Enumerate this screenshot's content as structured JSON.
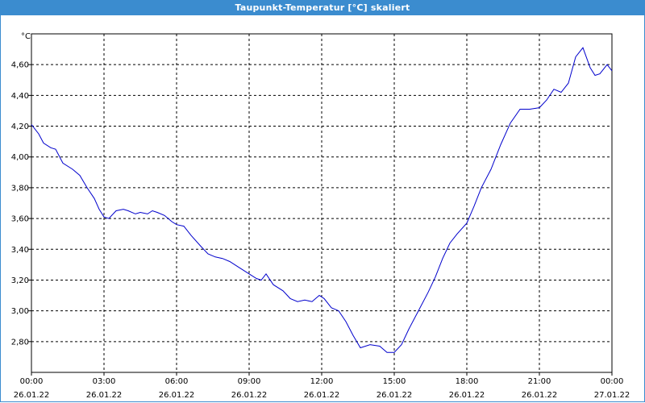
{
  "window": {
    "title": "Taupunkt-Temperatur [°C] skaliert"
  },
  "colors": {
    "title_bar": "#3b8ccf",
    "line": "#0000cc",
    "grid": "#000000"
  },
  "chart_data": {
    "type": "line",
    "title": "Taupunkt-Temperatur [°C] skaliert",
    "ylabel": "°C",
    "xlabel": "",
    "ylim": [
      2.6,
      4.8
    ],
    "xlim": [
      0,
      24
    ],
    "grid": true,
    "y_ticks": [
      {
        "value": 2.8,
        "label": "2,80"
      },
      {
        "value": 3.0,
        "label": "3,00"
      },
      {
        "value": 3.2,
        "label": "3,20"
      },
      {
        "value": 3.4,
        "label": "3,40"
      },
      {
        "value": 3.6,
        "label": "3,60"
      },
      {
        "value": 3.8,
        "label": "3,80"
      },
      {
        "value": 4.0,
        "label": "4,00"
      },
      {
        "value": 4.2,
        "label": "4,20"
      },
      {
        "value": 4.4,
        "label": "4,40"
      },
      {
        "value": 4.6,
        "label": "4,60"
      }
    ],
    "x_ticks": [
      {
        "value": 0,
        "time": "00:00",
        "date": "26.01.22"
      },
      {
        "value": 3,
        "time": "03:00",
        "date": "26.01.22"
      },
      {
        "value": 6,
        "time": "06:00",
        "date": "26.01.22"
      },
      {
        "value": 9,
        "time": "09:00",
        "date": "26.01.22"
      },
      {
        "value": 12,
        "time": "12:00",
        "date": "26.01.22"
      },
      {
        "value": 15,
        "time": "15:00",
        "date": "26.01.22"
      },
      {
        "value": 18,
        "time": "18:00",
        "date": "26.01.22"
      },
      {
        "value": 21,
        "time": "21:00",
        "date": "26.01.22"
      },
      {
        "value": 24,
        "time": "00:00",
        "date": "27.01.22"
      }
    ],
    "series": [
      {
        "x": [
          0,
          0.3,
          0.5,
          0.8,
          1.0,
          1.3,
          1.7,
          2.0,
          2.3,
          2.6,
          2.8,
          3.0,
          3.2,
          3.5,
          3.8,
          4.0,
          4.3,
          4.5,
          4.8,
          5.0,
          5.2,
          5.5,
          5.8,
          6.0,
          6.3,
          6.6,
          7.0,
          7.3,
          7.6,
          7.9,
          8.2,
          8.6,
          9.0,
          9.3,
          9.5,
          9.7,
          10.0,
          10.4,
          10.7,
          11.0,
          11.3,
          11.6,
          11.9,
          12.1,
          12.4,
          12.7,
          13.0,
          13.3,
          13.6,
          14.0,
          14.4,
          14.7,
          15.0,
          15.3,
          15.6,
          16.0,
          16.4,
          16.7,
          17.0,
          17.3,
          17.6,
          18.0,
          18.3,
          18.6,
          19.0,
          19.4,
          19.8,
          20.2,
          20.6,
          21.0,
          21.3,
          21.6,
          21.9,
          22.2,
          22.5,
          22.8,
          23.1,
          23.3,
          23.5,
          23.8,
          24.0
        ],
        "y": [
          4.21,
          4.15,
          4.09,
          4.06,
          4.05,
          3.96,
          3.92,
          3.88,
          3.8,
          3.73,
          3.66,
          3.61,
          3.6,
          3.65,
          3.66,
          3.65,
          3.63,
          3.64,
          3.63,
          3.65,
          3.64,
          3.62,
          3.58,
          3.56,
          3.55,
          3.49,
          3.42,
          3.37,
          3.35,
          3.34,
          3.32,
          3.28,
          3.24,
          3.21,
          3.2,
          3.24,
          3.17,
          3.13,
          3.08,
          3.06,
          3.07,
          3.06,
          3.1,
          3.08,
          3.02,
          3.0,
          2.93,
          2.84,
          2.76,
          2.78,
          2.77,
          2.73,
          2.73,
          2.78,
          2.88,
          3.0,
          3.12,
          3.22,
          3.34,
          3.44,
          3.5,
          3.57,
          3.68,
          3.8,
          3.92,
          4.08,
          4.22,
          4.31,
          4.31,
          4.32,
          4.37,
          4.44,
          4.42,
          4.48,
          4.65,
          4.71,
          4.58,
          4.53,
          4.54,
          4.6,
          4.56
        ]
      }
    ]
  }
}
